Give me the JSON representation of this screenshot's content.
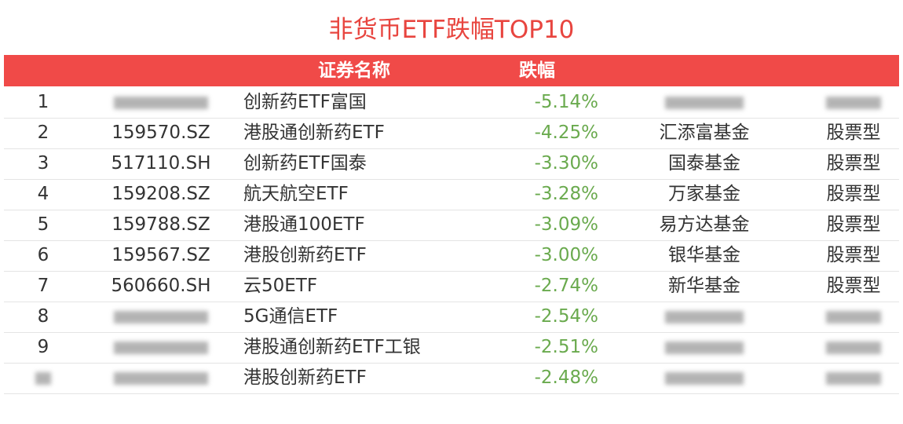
{
  "title": "非货币ETF跌幅TOP10",
  "table": {
    "header": {
      "name": "证券名称",
      "change": "跌幅"
    },
    "rows": [
      [
        "1",
        null,
        "创新药ETF富国",
        "-5.14%",
        null,
        null
      ],
      [
        "2",
        "159570.SZ",
        "港股通创新药ETF",
        "-4.25%",
        "汇添富基金",
        "股票型"
      ],
      [
        "3",
        "517110.SH",
        "创新药ETF国泰",
        "-3.30%",
        "国泰基金",
        "股票型"
      ],
      [
        "4",
        "159208.SZ",
        "航天航空ETF",
        "-3.28%",
        "万家基金",
        "股票型"
      ],
      [
        "5",
        "159788.SZ",
        "港股通100ETF",
        "-3.09%",
        "易方达基金",
        "股票型"
      ],
      [
        "6",
        "159567.SZ",
        "港股创新药ETF",
        "-3.00%",
        "银华基金",
        "股票型"
      ],
      [
        "7",
        "560660.SH",
        "云50ETF",
        "-2.74%",
        "新华基金",
        "股票型"
      ],
      [
        "8",
        null,
        "5G通信ETF",
        "-2.54%",
        null,
        null
      ],
      [
        "9",
        null,
        "港股通创新药ETF工银",
        "-2.51%",
        null,
        null
      ],
      [
        null,
        null,
        "港股创新药ETF",
        "-2.48%",
        null,
        null
      ]
    ]
  }
}
